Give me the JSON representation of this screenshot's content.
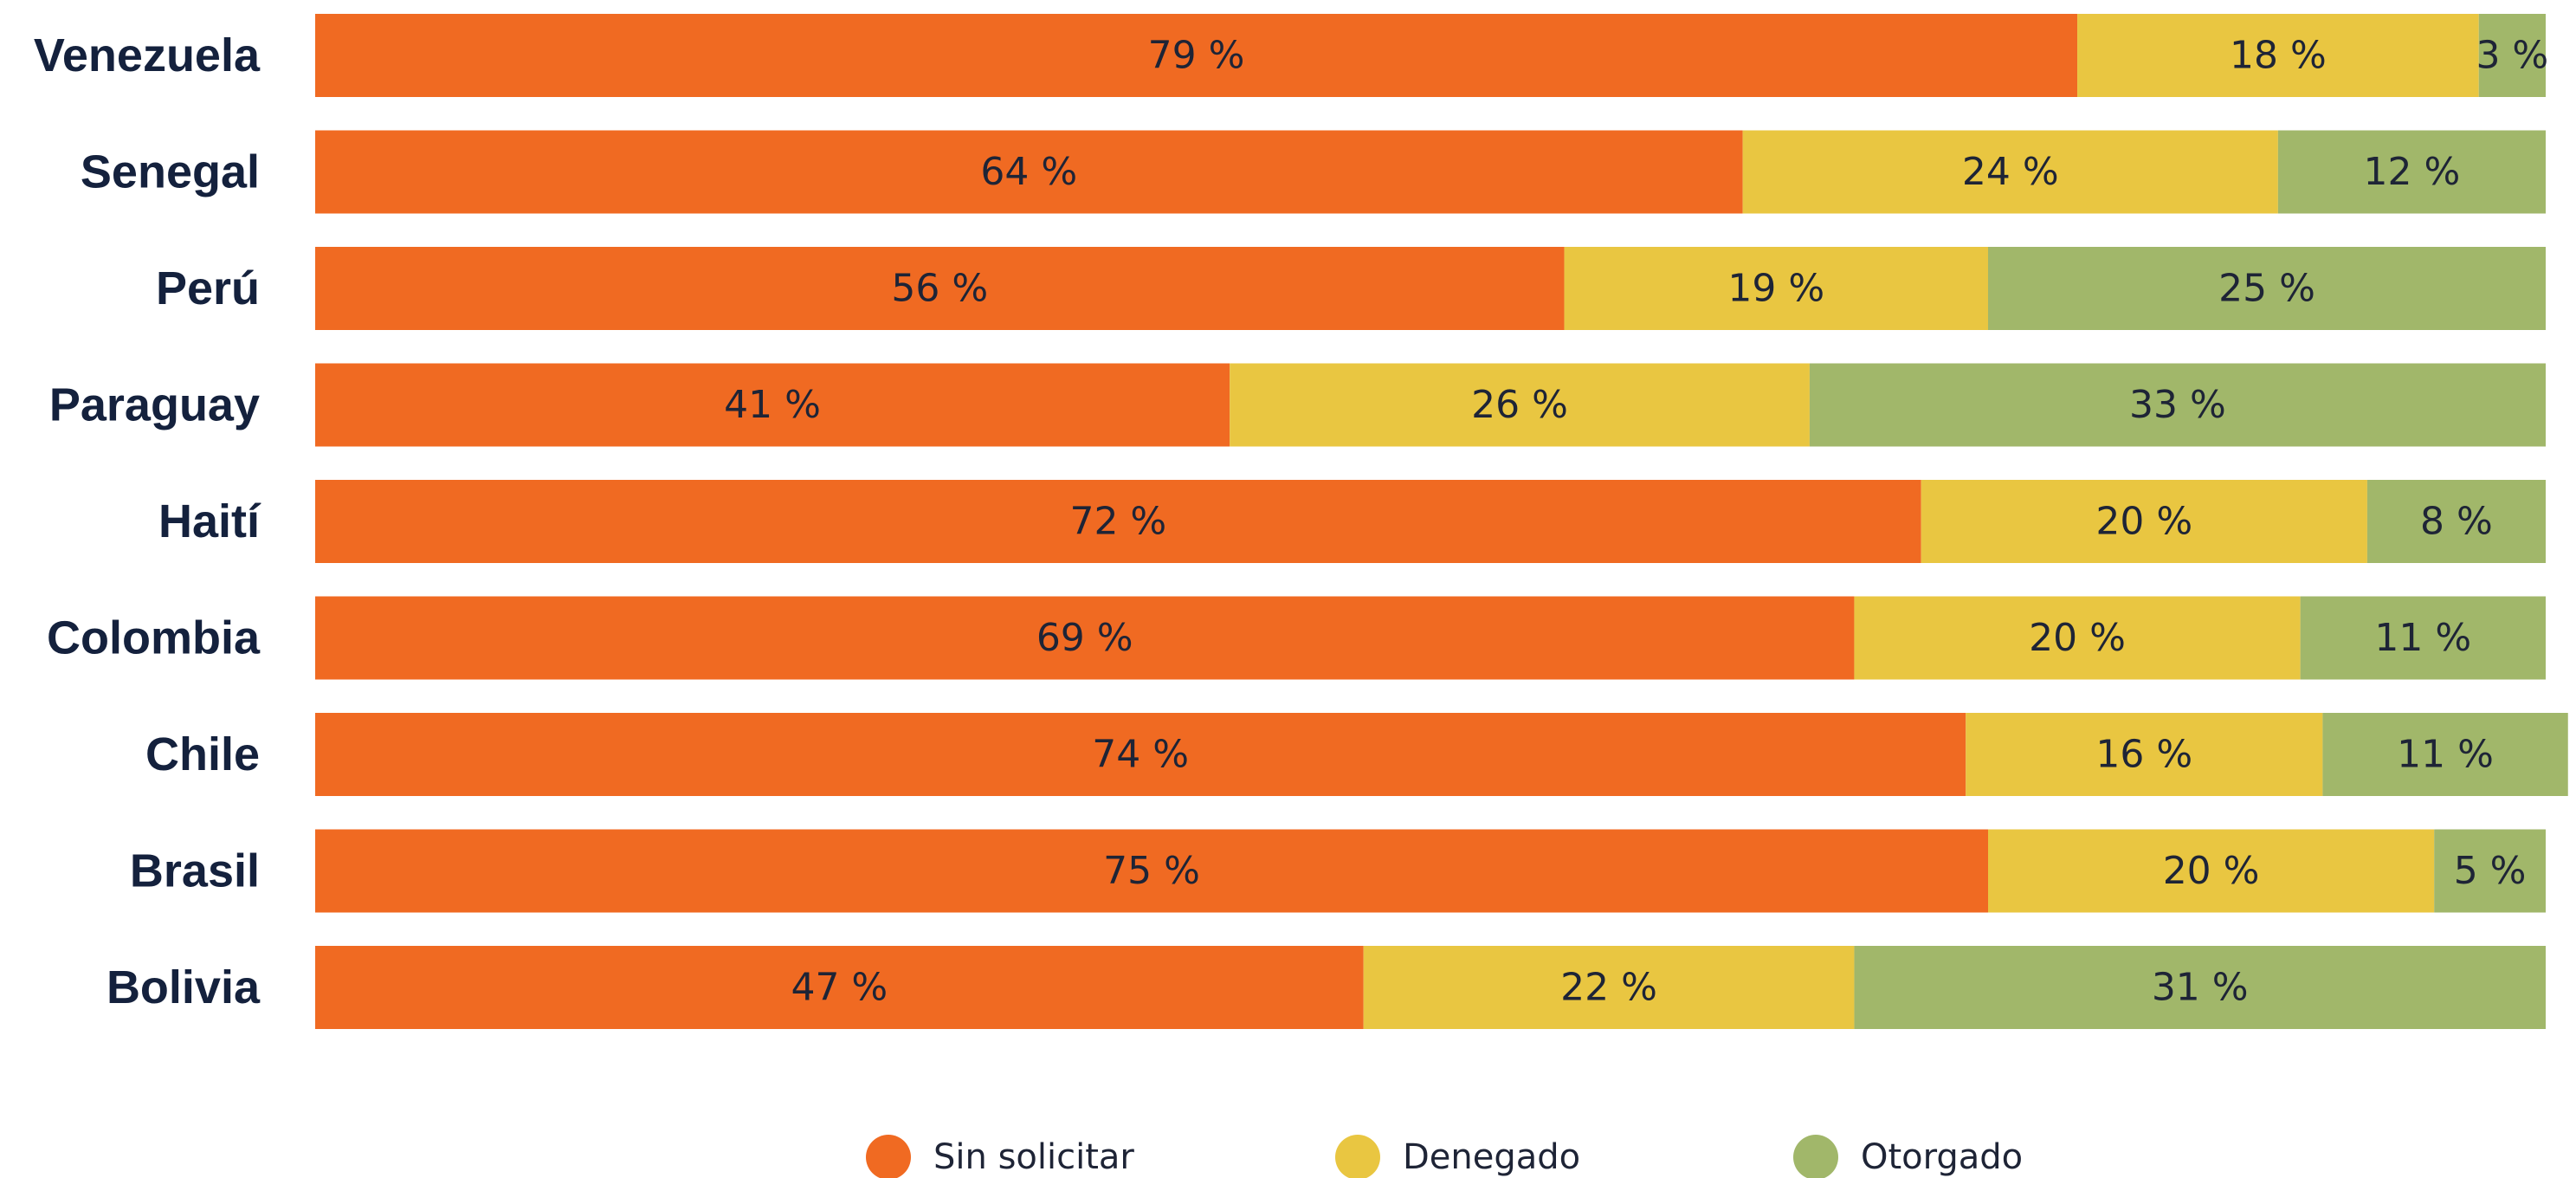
{
  "chart_data": {
    "type": "bar",
    "orientation": "horizontal",
    "stacked": true,
    "categories": [
      "Venezuela",
      "Senegal",
      "Perú",
      "Paraguay",
      "Haití",
      "Colombia",
      "Chile",
      "Brasil",
      "Bolivia"
    ],
    "series": [
      {
        "name": "Sin solicitar",
        "color": "#f06a22",
        "values": [
          79,
          64,
          56,
          41,
          72,
          69,
          74,
          75,
          47
        ]
      },
      {
        "name": "Denegado",
        "color": "#e9c641",
        "values": [
          18,
          24,
          19,
          26,
          20,
          20,
          16,
          20,
          22
        ]
      },
      {
        "name": "Otorgado",
        "color": "#a1b76a",
        "values": [
          3,
          12,
          25,
          33,
          8,
          11,
          11,
          5,
          31
        ]
      }
    ],
    "value_suffix": " %",
    "xlim": [
      0,
      100
    ],
    "grid": false,
    "legend_position": "bottom-center"
  }
}
